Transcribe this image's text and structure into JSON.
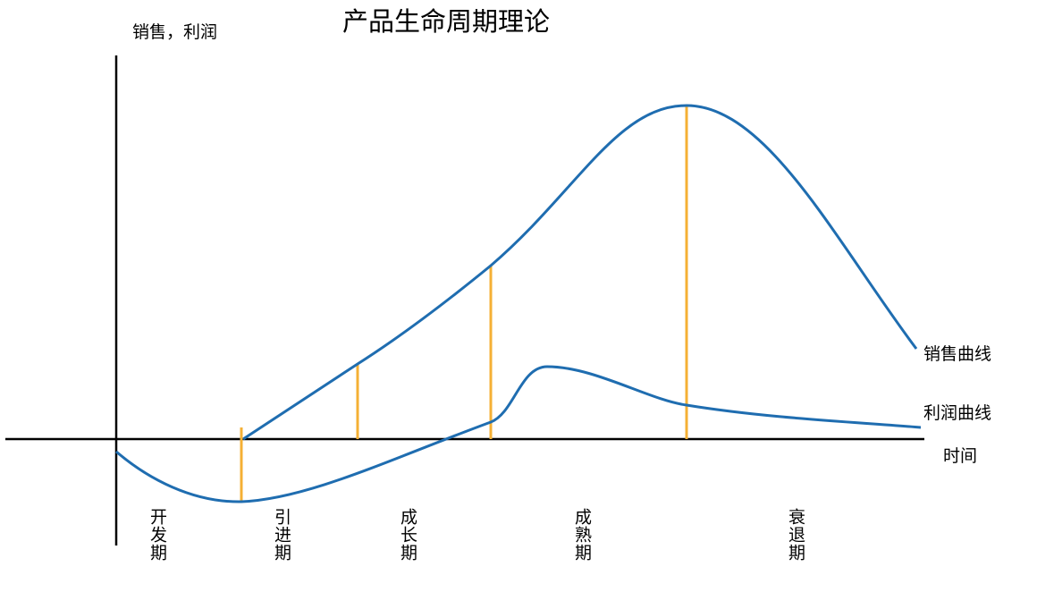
{
  "title": "产品生命周期理论",
  "axes": {
    "y_label": "销售，利润",
    "x_label": "时间"
  },
  "curves": {
    "sales_label": "销售曲线",
    "profit_label": "利润曲线"
  },
  "stages": [
    {
      "label": "开发期"
    },
    {
      "label": "引进期"
    },
    {
      "label": "成长期"
    },
    {
      "label": "成熟期"
    },
    {
      "label": "衰退期"
    }
  ],
  "colors": {
    "curve": "#1f6db0",
    "divider": "#f5b035",
    "axis": "#000000"
  }
}
